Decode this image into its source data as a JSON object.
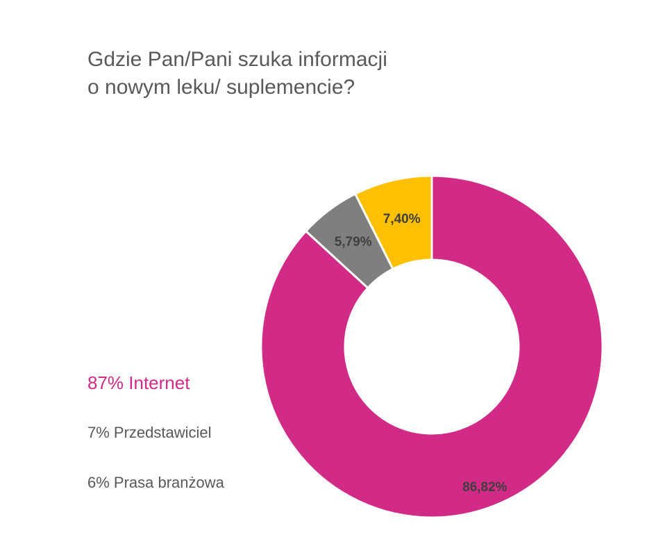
{
  "title": {
    "line1": "Gdzie Pan/Pani szuka informacji",
    "line2": "o nowym leku/ suplemencie?"
  },
  "legend": [
    {
      "text": "87% Internet"
    },
    {
      "text": "7% Przedstawiciel"
    },
    {
      "text": "6% Prasa branżowa"
    }
  ],
  "chart_data": {
    "type": "pie",
    "variant": "donut",
    "title": "Gdzie Pan/Pani szuka informacji o nowym leku/ suplemencie?",
    "slices": [
      {
        "value": 86.82,
        "label": "86,82%",
        "color": "#d12a87"
      },
      {
        "value": 5.79,
        "label": "5,79%",
        "color": "#7f7f7f"
      },
      {
        "value": 7.4,
        "label": "7,40%",
        "color": "#ffc000"
      }
    ]
  }
}
